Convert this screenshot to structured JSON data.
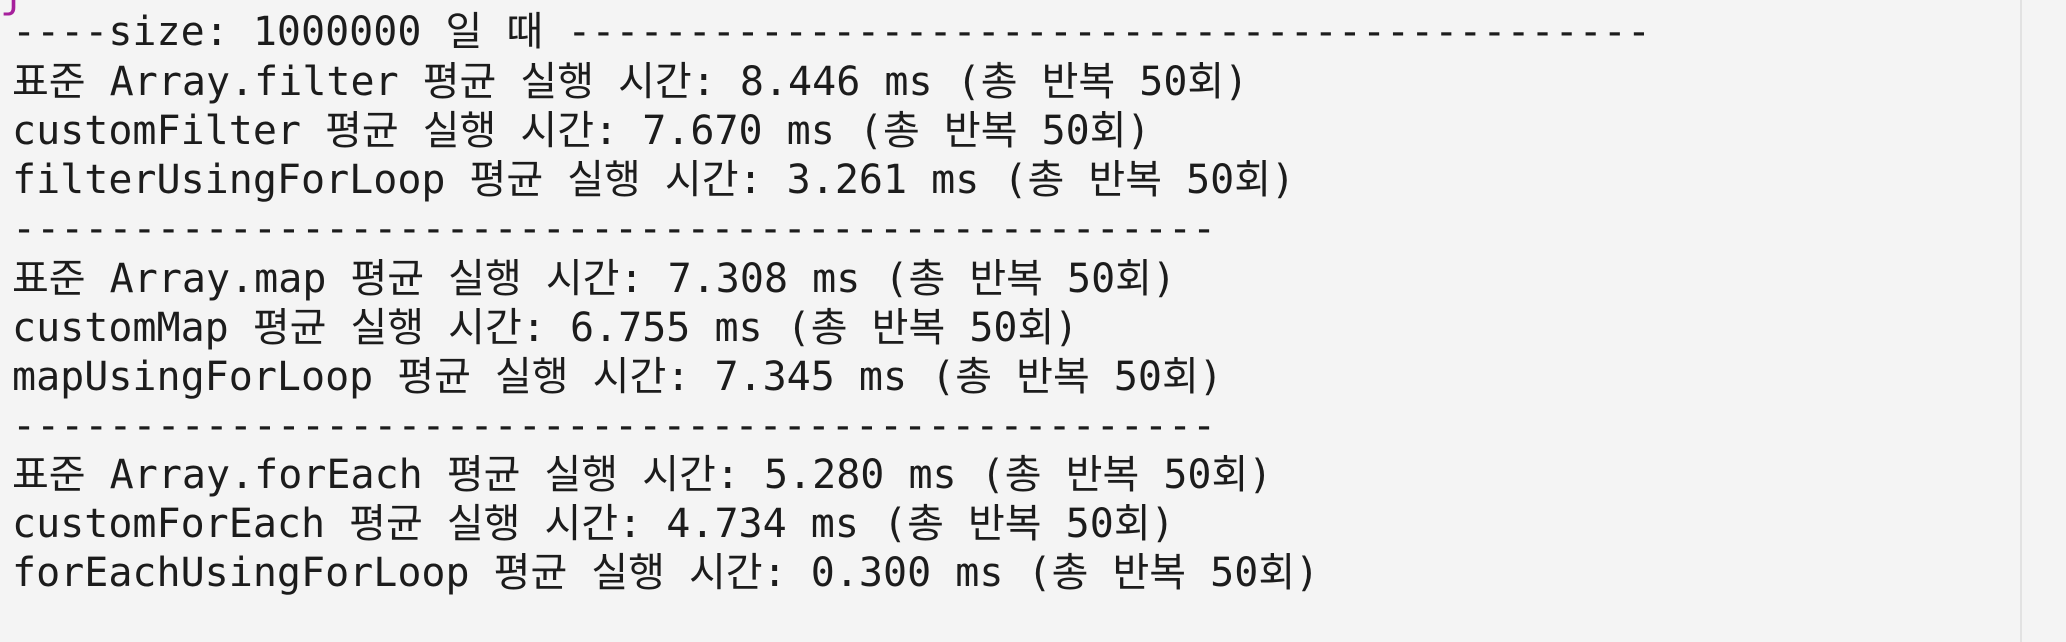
{
  "terminal": {
    "cut_top_line": "j",
    "lines": [
      "----size: 1000000 일 때 ---------------------------------------------",
      "표준 Array.filter 평균 실행 시간: 8.446 ms (총 반복 50회)",
      "customFilter 평균 실행 시간: 7.670 ms (총 반복 50회)",
      "filterUsingForLoop 평균 실행 시간: 3.261 ms (총 반복 50회)",
      "--------------------------------------------------",
      "표준 Array.map 평균 실행 시간: 7.308 ms (총 반복 50회)",
      "customMap 평균 실행 시간: 6.755 ms (총 반복 50회)",
      "mapUsingForLoop 평균 실행 시간: 7.345 ms (총 반복 50회)",
      "--------------------------------------------------",
      "표준 Array.forEach 평균 실행 시간: 5.280 ms (총 반복 50회)",
      "customForEach 평균 실행 시간: 4.734 ms (총 반복 50회)",
      "forEachUsingForLoop 평균 실행 시간: 0.300 ms (총 반복 50회)"
    ]
  }
}
